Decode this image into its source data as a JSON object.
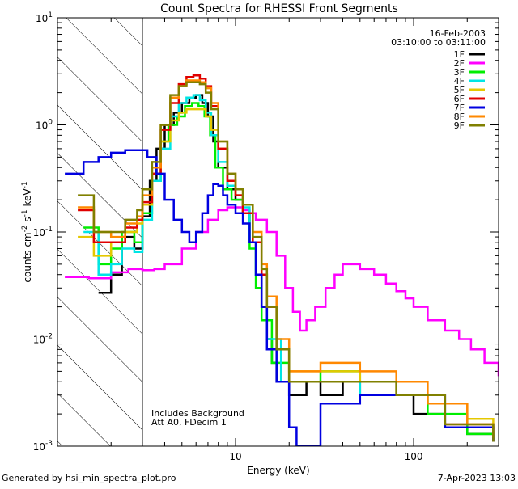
{
  "chart_data": {
    "type": "line",
    "title": "Count Spectra for RHESSI Front Segments",
    "xlabel": "Energy (keV)",
    "ylabel": {
      "base": "counts cm",
      "exp1": "-2",
      "mid1": " s",
      "exp2": "-1",
      "mid2": " keV",
      "exp3": "-1"
    },
    "xscale": "log",
    "yscale": "log",
    "xlim": [
      1,
      300
    ],
    "ylim": [
      0.001,
      10
    ],
    "x_ticks": [
      {
        "value": 10,
        "label": "10"
      },
      {
        "value": 100,
        "label": "100"
      }
    ],
    "y_ticks": [
      {
        "value": 0.001,
        "base": "10",
        "exp": "-3"
      },
      {
        "value": 0.01,
        "base": "10",
        "exp": "-2"
      },
      {
        "value": 0.1,
        "base": "10",
        "exp": "-1"
      },
      {
        "value": 1,
        "base": "10",
        "exp": "0"
      },
      {
        "value": 10,
        "base": "10",
        "exp": "1"
      }
    ],
    "hatched_region": {
      "x_start": 1,
      "x_end": 3
    },
    "date_label": "16-Feb-2003",
    "time_label": "03:10:00 to 03:11:00",
    "annotations": [
      "Includes Background",
      "Att A0, FDecim 1"
    ],
    "legend_position": "top-right",
    "series": [
      {
        "name": "1F",
        "color": "#000000",
        "points": [
          [
            1.7,
            0.027
          ],
          [
            2.0,
            0.04
          ],
          [
            2.3,
            0.09
          ],
          [
            2.7,
            0.07
          ],
          [
            3.0,
            0.14
          ],
          [
            3.3,
            0.3
          ],
          [
            3.6,
            0.6
          ],
          [
            4.0,
            1.0
          ],
          [
            4.5,
            1.3
          ],
          [
            5.0,
            1.6
          ],
          [
            5.5,
            1.8
          ],
          [
            6.0,
            1.9
          ],
          [
            6.5,
            1.6
          ],
          [
            7.0,
            1.2
          ],
          [
            7.5,
            0.7
          ],
          [
            8.0,
            0.4
          ],
          [
            9.0,
            0.25
          ],
          [
            10.0,
            0.2
          ],
          [
            11.0,
            0.15
          ],
          [
            12.0,
            0.08
          ],
          [
            13.0,
            0.04
          ],
          [
            14.0,
            0.02
          ],
          [
            15.0,
            0.01
          ],
          [
            16.0,
            0.006
          ],
          [
            17.0,
            0.004
          ],
          [
            20.0,
            0.003
          ],
          [
            25.0,
            0.004
          ],
          [
            30.0,
            0.003
          ],
          [
            40.0,
            0.004
          ],
          [
            50.0,
            0.003
          ],
          [
            60.0,
            0.003
          ],
          [
            80.0,
            0.003
          ],
          [
            100.0,
            0.002
          ],
          [
            150.0,
            0.0015
          ],
          [
            200.0,
            0.0013
          ],
          [
            280.0,
            0.0011
          ]
        ]
      },
      {
        "name": "2F",
        "color": "#ff00ff",
        "points": [
          [
            1.1,
            0.038
          ],
          [
            1.5,
            0.037
          ],
          [
            2.0,
            0.042
          ],
          [
            2.5,
            0.045
          ],
          [
            3.0,
            0.044
          ],
          [
            3.5,
            0.045
          ],
          [
            4.0,
            0.05
          ],
          [
            5.0,
            0.07
          ],
          [
            6.0,
            0.1
          ],
          [
            7.0,
            0.13
          ],
          [
            8.0,
            0.16
          ],
          [
            9.0,
            0.17
          ],
          [
            10.0,
            0.17
          ],
          [
            11.0,
            0.16
          ],
          [
            12.0,
            0.15
          ],
          [
            13.0,
            0.13
          ],
          [
            15.0,
            0.1
          ],
          [
            17.0,
            0.06
          ],
          [
            19.0,
            0.03
          ],
          [
            21.0,
            0.018
          ],
          [
            23.0,
            0.012
          ],
          [
            25.0,
            0.015
          ],
          [
            28.0,
            0.02
          ],
          [
            32.0,
            0.03
          ],
          [
            36.0,
            0.04
          ],
          [
            40.0,
            0.05
          ],
          [
            45.0,
            0.05
          ],
          [
            50.0,
            0.045
          ],
          [
            60.0,
            0.04
          ],
          [
            70.0,
            0.033
          ],
          [
            80.0,
            0.028
          ],
          [
            90.0,
            0.024
          ],
          [
            100.0,
            0.02
          ],
          [
            120.0,
            0.015
          ],
          [
            150.0,
            0.012
          ],
          [
            180.0,
            0.01
          ],
          [
            210.0,
            0.008
          ],
          [
            250.0,
            0.006
          ],
          [
            300.0,
            0.0045
          ]
        ]
      },
      {
        "name": "3F",
        "color": "#00ee00",
        "points": [
          [
            1.4,
            0.11
          ],
          [
            1.7,
            0.05
          ],
          [
            2.0,
            0.07
          ],
          [
            2.3,
            0.1
          ],
          [
            2.7,
            0.08
          ],
          [
            3.0,
            0.15
          ],
          [
            3.4,
            0.3
          ],
          [
            3.8,
            0.7
          ],
          [
            4.2,
            1.0
          ],
          [
            4.7,
            1.2
          ],
          [
            5.2,
            1.5
          ],
          [
            5.7,
            1.6
          ],
          [
            6.2,
            1.5
          ],
          [
            6.7,
            1.2
          ],
          [
            7.2,
            0.8
          ],
          [
            7.7,
            0.4
          ],
          [
            8.5,
            0.25
          ],
          [
            9.5,
            0.2
          ],
          [
            11.0,
            0.15
          ],
          [
            12.0,
            0.07
          ],
          [
            13.0,
            0.03
          ],
          [
            14.0,
            0.015
          ],
          [
            16.0,
            0.006
          ],
          [
            20.0,
            0.004
          ],
          [
            30.0,
            0.005
          ],
          [
            50.0,
            0.004
          ],
          [
            80.0,
            0.003
          ],
          [
            120.0,
            0.002
          ],
          [
            200.0,
            0.0013
          ],
          [
            280.0,
            0.0011
          ]
        ]
      },
      {
        "name": "4F",
        "color": "#00e5e5",
        "points": [
          [
            1.4,
            0.1
          ],
          [
            1.7,
            0.04
          ],
          [
            2.0,
            0.05
          ],
          [
            2.3,
            0.07
          ],
          [
            2.7,
            0.065
          ],
          [
            3.0,
            0.13
          ],
          [
            3.4,
            0.3
          ],
          [
            3.8,
            0.6
          ],
          [
            4.3,
            1.2
          ],
          [
            4.8,
            1.6
          ],
          [
            5.3,
            1.8
          ],
          [
            5.8,
            1.9
          ],
          [
            6.3,
            1.7
          ],
          [
            6.8,
            1.3
          ],
          [
            7.3,
            0.8
          ],
          [
            8.0,
            0.45
          ],
          [
            9.0,
            0.27
          ],
          [
            10.0,
            0.22
          ],
          [
            11.0,
            0.17
          ],
          [
            12.0,
            0.08
          ],
          [
            13.0,
            0.04
          ],
          [
            15.0,
            0.01
          ],
          [
            18.0,
            0.004
          ],
          [
            30.0,
            0.004
          ],
          [
            50.0,
            0.003
          ],
          [
            80.0,
            0.003
          ],
          [
            150.0,
            0.0015
          ],
          [
            280.0,
            0.0011
          ]
        ]
      },
      {
        "name": "5F",
        "color": "#e5c800",
        "points": [
          [
            1.3,
            0.09
          ],
          [
            1.6,
            0.06
          ],
          [
            2.0,
            0.08
          ],
          [
            2.4,
            0.1
          ],
          [
            2.8,
            0.12
          ],
          [
            3.0,
            0.18
          ],
          [
            3.4,
            0.35
          ],
          [
            3.8,
            0.7
          ],
          [
            4.3,
            1.1
          ],
          [
            4.8,
            1.3
          ],
          [
            5.3,
            1.4
          ],
          [
            5.8,
            1.4
          ],
          [
            6.3,
            1.4
          ],
          [
            6.8,
            1.2
          ],
          [
            7.3,
            0.9
          ],
          [
            8.0,
            0.6
          ],
          [
            9.0,
            0.3
          ],
          [
            10.0,
            0.22
          ],
          [
            11.0,
            0.15
          ],
          [
            12.5,
            0.08
          ],
          [
            14.0,
            0.04
          ],
          [
            15.0,
            0.02
          ],
          [
            17.0,
            0.008
          ],
          [
            20.0,
            0.005
          ],
          [
            30.0,
            0.005
          ],
          [
            50.0,
            0.004
          ],
          [
            80.0,
            0.003
          ],
          [
            120.0,
            0.0025
          ],
          [
            200.0,
            0.0018
          ],
          [
            280.0,
            0.0013
          ]
        ]
      },
      {
        "name": "6F",
        "color": "#e00000",
        "points": [
          [
            1.3,
            0.16
          ],
          [
            1.6,
            0.08
          ],
          [
            2.0,
            0.08
          ],
          [
            2.4,
            0.11
          ],
          [
            2.8,
            0.13
          ],
          [
            3.0,
            0.19
          ],
          [
            3.4,
            0.35
          ],
          [
            3.8,
            0.9
          ],
          [
            4.3,
            1.6
          ],
          [
            4.8,
            2.4
          ],
          [
            5.3,
            2.8
          ],
          [
            5.8,
            2.9
          ],
          [
            6.3,
            2.7
          ],
          [
            6.8,
            2.3
          ],
          [
            7.3,
            1.5
          ],
          [
            8.0,
            0.6
          ],
          [
            9.0,
            0.3
          ],
          [
            10.0,
            0.22
          ],
          [
            11.0,
            0.15
          ],
          [
            12.5,
            0.08
          ],
          [
            14.0,
            0.04
          ],
          [
            15.0,
            0.02
          ],
          [
            17.0,
            0.008
          ],
          [
            20.0,
            0.004
          ],
          [
            30.0,
            0.004
          ],
          [
            50.0,
            0.004
          ],
          [
            80.0,
            0.003
          ],
          [
            150.0,
            0.0016
          ],
          [
            280.0,
            0.0011
          ]
        ]
      },
      {
        "name": "7F",
        "color": "#0000e0",
        "points": [
          [
            1.1,
            0.35
          ],
          [
            1.4,
            0.45
          ],
          [
            1.7,
            0.5
          ],
          [
            2.0,
            0.55
          ],
          [
            2.4,
            0.58
          ],
          [
            2.8,
            0.58
          ],
          [
            3.2,
            0.5
          ],
          [
            3.6,
            0.35
          ],
          [
            4.0,
            0.2
          ],
          [
            4.5,
            0.13
          ],
          [
            5.0,
            0.1
          ],
          [
            5.5,
            0.08
          ],
          [
            6.0,
            0.1
          ],
          [
            6.5,
            0.15
          ],
          [
            7.0,
            0.22
          ],
          [
            7.5,
            0.28
          ],
          [
            8.0,
            0.27
          ],
          [
            8.5,
            0.22
          ],
          [
            9.0,
            0.18
          ],
          [
            10.0,
            0.15
          ],
          [
            11.0,
            0.12
          ],
          [
            12.0,
            0.08
          ],
          [
            13.0,
            0.04
          ],
          [
            14.0,
            0.02
          ],
          [
            15.0,
            0.008
          ],
          [
            17.0,
            0.004
          ],
          [
            20.0,
            0.0015
          ],
          [
            22.0,
            0.001
          ],
          [
            30.0,
            0.0025
          ],
          [
            50.0,
            0.003
          ],
          [
            80.0,
            0.003
          ],
          [
            150.0,
            0.0015
          ],
          [
            280.0,
            0.0011
          ]
        ]
      },
      {
        "name": "8F",
        "color": "#ff8800",
        "points": [
          [
            1.3,
            0.17
          ],
          [
            1.6,
            0.1
          ],
          [
            2.0,
            0.09
          ],
          [
            2.4,
            0.12
          ],
          [
            2.8,
            0.14
          ],
          [
            3.0,
            0.22
          ],
          [
            3.4,
            0.4
          ],
          [
            3.8,
            1.0
          ],
          [
            4.3,
            1.8
          ],
          [
            4.8,
            2.3
          ],
          [
            5.3,
            2.6
          ],
          [
            5.8,
            2.6
          ],
          [
            6.3,
            2.5
          ],
          [
            6.8,
            2.2
          ],
          [
            7.3,
            1.6
          ],
          [
            8.0,
            0.7
          ],
          [
            9.0,
            0.35
          ],
          [
            10.0,
            0.25
          ],
          [
            11.0,
            0.18
          ],
          [
            12.5,
            0.1
          ],
          [
            14.0,
            0.05
          ],
          [
            15.0,
            0.025
          ],
          [
            17.0,
            0.01
          ],
          [
            20.0,
            0.005
          ],
          [
            30.0,
            0.006
          ],
          [
            50.0,
            0.005
          ],
          [
            80.0,
            0.004
          ],
          [
            120.0,
            0.0025
          ],
          [
            200.0,
            0.0016
          ],
          [
            280.0,
            0.0012
          ]
        ]
      },
      {
        "name": "9F",
        "color": "#808000",
        "points": [
          [
            1.3,
            0.22
          ],
          [
            1.6,
            0.1
          ],
          [
            2.0,
            0.1
          ],
          [
            2.4,
            0.13
          ],
          [
            2.8,
            0.16
          ],
          [
            3.0,
            0.25
          ],
          [
            3.4,
            0.45
          ],
          [
            3.8,
            1.0
          ],
          [
            4.3,
            1.9
          ],
          [
            4.8,
            2.3
          ],
          [
            5.3,
            2.5
          ],
          [
            5.8,
            2.5
          ],
          [
            6.3,
            2.4
          ],
          [
            6.8,
            2.0
          ],
          [
            7.3,
            1.4
          ],
          [
            8.0,
            0.7
          ],
          [
            9.0,
            0.35
          ],
          [
            10.0,
            0.25
          ],
          [
            11.0,
            0.18
          ],
          [
            12.5,
            0.09
          ],
          [
            14.0,
            0.045
          ],
          [
            15.0,
            0.02
          ],
          [
            17.0,
            0.008
          ],
          [
            20.0,
            0.004
          ],
          [
            30.0,
            0.004
          ],
          [
            50.0,
            0.004
          ],
          [
            80.0,
            0.003
          ],
          [
            150.0,
            0.0016
          ],
          [
            280.0,
            0.0011
          ]
        ]
      }
    ]
  },
  "footer": {
    "generated_by": "Generated by hsi_min_spectra_plot.pro",
    "timestamp": "7-Apr-2023 13:03"
  }
}
